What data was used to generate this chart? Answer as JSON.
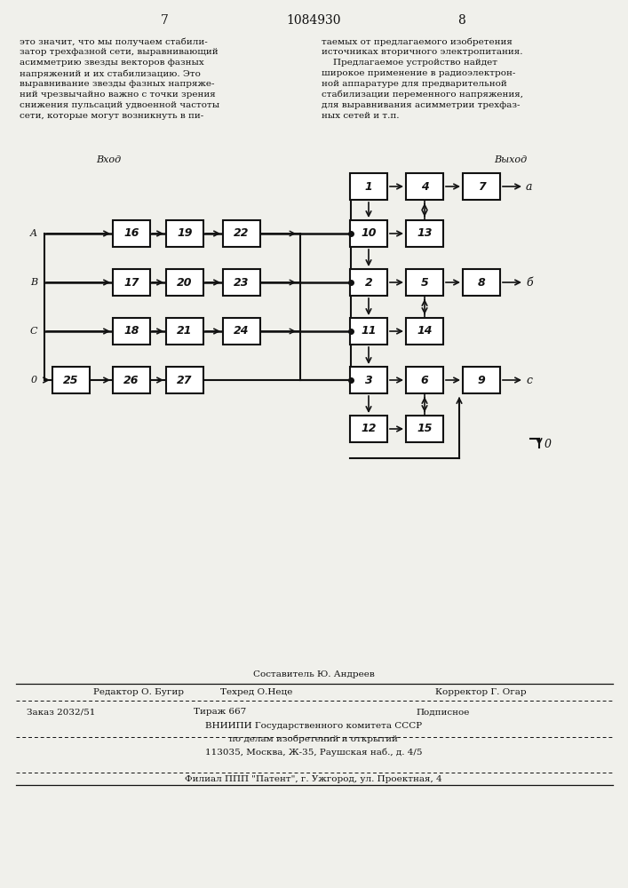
{
  "bg_color": "#f0f0eb",
  "page_left": "7",
  "page_center": "1084930",
  "page_right": "8",
  "left_text": "это значит, что мы получаем стабили-\nзатор трехфазной сети, выравнивающий\nасимметрию звезды векторов фазных\nнапряжений и их стабилизацию. Это\nвыравнивание звезды фазных напряже-\nний чрезвычайно важно с точки зрения\nснижения пульсаций удвоенной частоты\nсети, которые могут возникнуть в пи-",
  "right_text": "таемых от предлагаемого изобретения\nисточниках вторичного электропитания.\n    Предлагаемое устройство найдет\nширокое применение в радиоэлектрон-\nной аппаратуре для предварительной\nстабилизации переменного напряжения,\nдля выравнивания асимметрии трехфаз-\nных сетей и т.п.",
  "footer_sestavitel": "Составитель Ю. Андреев",
  "footer_redaktor": "Редактор О. Бугир",
  "footer_tekhred": "Техред О.Неце",
  "footer_korrektor": "Корректор Г. Огар",
  "footer_zakaz": "Заказ 2032/51",
  "footer_tirazh": "Тираж 667",
  "footer_podpisnoe": "Подписное",
  "footer_vniipи": "ВНИИПИ Государственного комитета СССР",
  "footer_delam": "по делам изобретений и открытий",
  "footer_addr": "113035, Москва, Ж-35, Раушская наб., д. 4/5",
  "footer_filial": "Филиал ППП \"Патент\", г. Ужгород, ул. Проектная, 4",
  "col_x": {
    "0": 80,
    "1": 148,
    "2": 208,
    "3": 272,
    "5": 415,
    "6": 478,
    "7": 542
  },
  "row_y": {
    "0": 790,
    "1": 737,
    "2": 682,
    "3": 627,
    "4": 572,
    "5": 517
  },
  "bw": 42,
  "bh": 30,
  "blocks": [
    {
      "id": "1",
      "col": 5,
      "row": 0
    },
    {
      "id": "2",
      "col": 5,
      "row": 2
    },
    {
      "id": "3",
      "col": 5,
      "row": 4
    },
    {
      "id": "4",
      "col": 6,
      "row": 0
    },
    {
      "id": "5",
      "col": 6,
      "row": 2
    },
    {
      "id": "6",
      "col": 6,
      "row": 4
    },
    {
      "id": "7",
      "col": 7,
      "row": 0
    },
    {
      "id": "8",
      "col": 7,
      "row": 2
    },
    {
      "id": "9",
      "col": 7,
      "row": 4
    },
    {
      "id": "10",
      "col": 5,
      "row": 1
    },
    {
      "id": "11",
      "col": 5,
      "row": 3
    },
    {
      "id": "12",
      "col": 5,
      "row": 5
    },
    {
      "id": "13",
      "col": 6,
      "row": 1
    },
    {
      "id": "14",
      "col": 6,
      "row": 3
    },
    {
      "id": "15",
      "col": 6,
      "row": 5
    },
    {
      "id": "16",
      "col": 1,
      "row": 1
    },
    {
      "id": "17",
      "col": 1,
      "row": 2
    },
    {
      "id": "18",
      "col": 1,
      "row": 3
    },
    {
      "id": "19",
      "col": 2,
      "row": 1
    },
    {
      "id": "20",
      "col": 2,
      "row": 2
    },
    {
      "id": "21",
      "col": 2,
      "row": 3
    },
    {
      "id": "22",
      "col": 3,
      "row": 1
    },
    {
      "id": "23",
      "col": 3,
      "row": 2
    },
    {
      "id": "24",
      "col": 3,
      "row": 3
    },
    {
      "id": "25",
      "col": 0,
      "row": 4
    },
    {
      "id": "26",
      "col": 1,
      "row": 4
    },
    {
      "id": "27",
      "col": 2,
      "row": 4
    }
  ]
}
